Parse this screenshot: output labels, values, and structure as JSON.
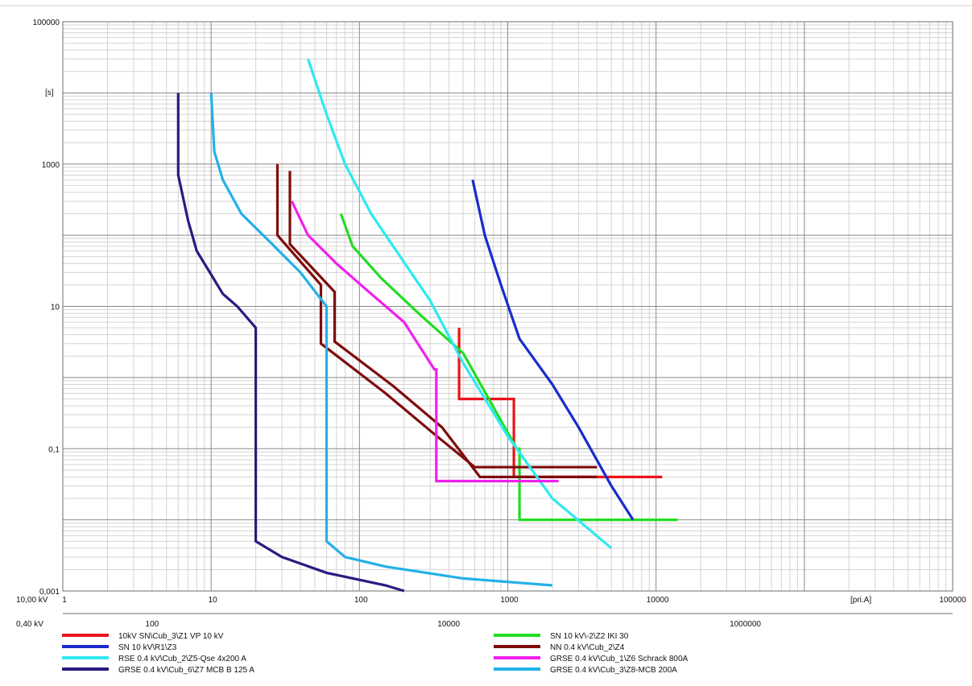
{
  "chart_data": {
    "type": "line",
    "title": "",
    "scale": "log-log",
    "grid": true,
    "xlim": [
      1,
      1000000
    ],
    "ylim": [
      0.001,
      100000
    ],
    "x_major_ticks": [
      {
        "value": 1,
        "label": "1"
      },
      {
        "value": 10,
        "label": "10"
      },
      {
        "value": 100,
        "label": "100"
      },
      {
        "value": 1000,
        "label": "1000"
      },
      {
        "value": 10000,
        "label": "10000"
      },
      {
        "value": 100000,
        "label": "100000"
      }
    ],
    "y_major_ticks": [
      {
        "value": 100000,
        "label": "100000"
      },
      {
        "value": 1000,
        "label": "1000"
      },
      {
        "value": 10,
        "label": "10"
      },
      {
        "value": 0.1,
        "label": "0,1"
      },
      {
        "value": 0.001,
        "label": "0,001"
      }
    ],
    "ylabel": "[s]",
    "xlabel": "[pri.A]",
    "voltage_axes": [
      {
        "label": "10,00 kV",
        "factor": 1
      },
      {
        "label": "0,40 kV",
        "factor": 25,
        "ticks": [
          {
            "value": 100,
            "label": "100"
          },
          {
            "value": 10000,
            "label": "10000"
          },
          {
            "value": 1000000,
            "label": "1000000"
          }
        ]
      }
    ],
    "legend_position": "bottom",
    "series": [
      {
        "name": "10kV SN\\Cub_3\\Z1 VP 10 kV",
        "color": "#e8141a",
        "points": [
          [
            470,
            5
          ],
          [
            470,
            0.5
          ],
          [
            1100,
            0.5
          ],
          [
            1100,
            0.04
          ],
          [
            2200,
            0.04
          ],
          [
            11000,
            0.04
          ]
        ]
      },
      {
        "name": "SN 10 kV\\-2\\Z2  IKI 30",
        "color": "#22dd22",
        "points": [
          [
            75,
            200
          ],
          [
            90,
            70
          ],
          [
            140,
            25
          ],
          [
            250,
            8
          ],
          [
            500,
            2.2
          ],
          [
            1150,
            0.1
          ],
          [
            1200,
            0.1
          ],
          [
            1200,
            0.01
          ],
          [
            14000,
            0.01
          ]
        ]
      },
      {
        "name": "SN 10 kV\\R1\\Z3",
        "color": "#1a2ccc",
        "points": [
          [
            580,
            600
          ],
          [
            700,
            100
          ],
          [
            900,
            20
          ],
          [
            1200,
            3.5
          ],
          [
            2000,
            0.8
          ],
          [
            3000,
            0.2
          ],
          [
            5000,
            0.03
          ],
          [
            7000,
            0.01
          ]
        ]
      },
      {
        "name": "NN 0.4 kV\\Cub_2\\Z4",
        "color": "#7f0c0c",
        "points": [
          [
            28,
            1000
          ],
          [
            28,
            100
          ],
          [
            55,
            20
          ],
          [
            55,
            3
          ],
          [
            150,
            0.6
          ],
          [
            320,
            0.16
          ],
          [
            600,
            0.055
          ],
          [
            4000,
            0.055
          ]
        ]
      },
      {
        "name": "NN 0.4 kV\\Cub_2\\Z4",
        "color": "#7f0c0c",
        "points": [
          [
            34,
            800
          ],
          [
            34,
            75
          ],
          [
            68,
            16
          ],
          [
            68,
            3.2
          ],
          [
            170,
            0.75
          ],
          [
            360,
            0.2
          ],
          [
            650,
            0.04
          ],
          [
            4000,
            0.04
          ]
        ]
      },
      {
        "name": "RSE 0.4 kV\\Cub_2\\Z5-Qse 4x200 A",
        "color": "#2ee9f0",
        "points": [
          [
            45,
            30000
          ],
          [
            60,
            5000
          ],
          [
            80,
            1000
          ],
          [
            120,
            200
          ],
          [
            300,
            12
          ],
          [
            500,
            1.6
          ],
          [
            1000,
            0.15
          ],
          [
            2000,
            0.02
          ],
          [
            5000,
            0.004
          ]
        ]
      },
      {
        "name": "GRSE 0.4 kV\\Cub_1\\Z6 Schrack 800A",
        "color": "#f020ee",
        "points": [
          [
            35,
            300
          ],
          [
            45,
            100
          ],
          [
            70,
            40
          ],
          [
            120,
            15
          ],
          [
            200,
            6
          ],
          [
            320,
            1.3
          ],
          [
            330,
            1.3
          ],
          [
            330,
            0.035
          ],
          [
            2200,
            0.035
          ]
        ]
      },
      {
        "name": "GRSE 0.4 kV\\Cub_6\\Z7 MCB  B 125 A",
        "color": "#2d1a80",
        "points": [
          [
            6,
            10000
          ],
          [
            6,
            700
          ],
          [
            7,
            160
          ],
          [
            8,
            60
          ],
          [
            10,
            28
          ],
          [
            12,
            15
          ],
          [
            15,
            10
          ],
          [
            20,
            5
          ],
          [
            20,
            0.005
          ],
          [
            30,
            0.003
          ],
          [
            60,
            0.0018
          ],
          [
            150,
            0.0012
          ],
          [
            200,
            0.001
          ]
        ]
      },
      {
        "name": "GRSE 0.4 kV\\Cub_3\\Z8-MCB 200A",
        "color": "#23b0e8",
        "points": [
          [
            10,
            10000
          ],
          [
            10.5,
            1500
          ],
          [
            12,
            600
          ],
          [
            16,
            200
          ],
          [
            25,
            80
          ],
          [
            40,
            30
          ],
          [
            60,
            10
          ],
          [
            60,
            0.005
          ],
          [
            80,
            0.003
          ],
          [
            150,
            0.0022
          ],
          [
            500,
            0.0015
          ],
          [
            2000,
            0.0012
          ]
        ]
      }
    ]
  }
}
